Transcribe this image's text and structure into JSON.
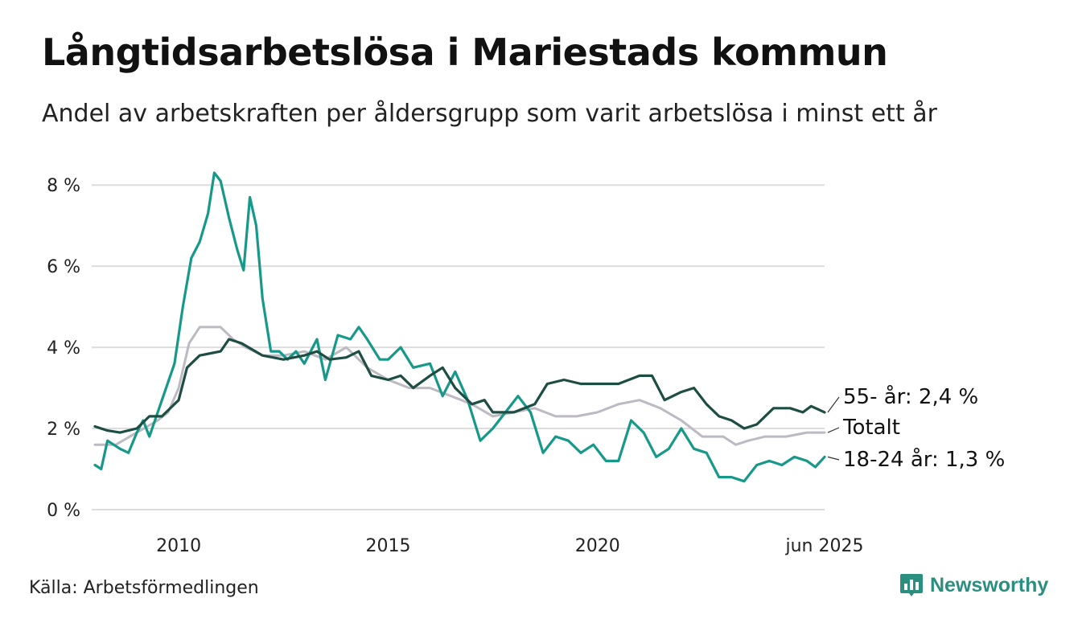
{
  "title": "Långtidsarbetslösa i Mariestads kommun",
  "subtitle": "Andel av arbetskraften per åldersgrupp som varit arbetslösa i minst ett år",
  "source": "Källa: Arbetsförmedlingen",
  "brand": "Newsworthy",
  "colors": {
    "s55": "#1e4d43",
    "total": "#bdbac4",
    "s1824": "#17998a",
    "grid": "#dddddd",
    "brand": "#2a8f7e"
  },
  "chart_data": {
    "type": "line",
    "xlim": [
      2008.0,
      2025.42
    ],
    "ylim": [
      0,
      8.4
    ],
    "y_ticks": [
      0,
      2,
      4,
      6,
      8
    ],
    "y_tick_labels": [
      "0 %",
      "2 %",
      "4 %",
      "6 %",
      "8 %"
    ],
    "x_ticks": [
      2010,
      2015,
      2020,
      2025.42
    ],
    "x_tick_labels": [
      "2010",
      "2015",
      "2020",
      "jun 2025"
    ],
    "series": [
      {
        "key": "total",
        "name": "Totalt",
        "end_label": "Totalt",
        "color": "#bdbac4",
        "points": [
          [
            2008.0,
            1.6
          ],
          [
            2008.5,
            1.6
          ],
          [
            2009.0,
            1.9
          ],
          [
            2009.5,
            2.2
          ],
          [
            2009.75,
            2.4
          ],
          [
            2010.0,
            3.0
          ],
          [
            2010.25,
            4.1
          ],
          [
            2010.5,
            4.5
          ],
          [
            2011.0,
            4.5
          ],
          [
            2011.3,
            4.2
          ],
          [
            2011.6,
            4.0
          ],
          [
            2012.0,
            3.8
          ],
          [
            2012.5,
            3.8
          ],
          [
            2013.0,
            3.9
          ],
          [
            2013.5,
            3.7
          ],
          [
            2014.0,
            4.0
          ],
          [
            2014.5,
            3.5
          ],
          [
            2015.0,
            3.2
          ],
          [
            2015.5,
            3.0
          ],
          [
            2016.0,
            3.0
          ],
          [
            2016.5,
            2.8
          ],
          [
            2017.0,
            2.6
          ],
          [
            2017.5,
            2.3
          ],
          [
            2018.0,
            2.4
          ],
          [
            2018.5,
            2.5
          ],
          [
            2019.0,
            2.3
          ],
          [
            2019.5,
            2.3
          ],
          [
            2020.0,
            2.4
          ],
          [
            2020.5,
            2.6
          ],
          [
            2021.0,
            2.7
          ],
          [
            2021.5,
            2.5
          ],
          [
            2022.0,
            2.2
          ],
          [
            2022.5,
            1.8
          ],
          [
            2023.0,
            1.8
          ],
          [
            2023.3,
            1.6
          ],
          [
            2023.6,
            1.7
          ],
          [
            2024.0,
            1.8
          ],
          [
            2024.5,
            1.8
          ],
          [
            2025.0,
            1.9
          ],
          [
            2025.42,
            1.9
          ]
        ]
      },
      {
        "key": "s55",
        "name": "55- år",
        "end_label": "55- år: 2,4 %",
        "color": "#1e4d43",
        "points": [
          [
            2008.0,
            2.05
          ],
          [
            2008.3,
            1.95
          ],
          [
            2008.6,
            1.9
          ],
          [
            2009.0,
            2.0
          ],
          [
            2009.3,
            2.3
          ],
          [
            2009.6,
            2.3
          ],
          [
            2010.0,
            2.7
          ],
          [
            2010.2,
            3.5
          ],
          [
            2010.5,
            3.8
          ],
          [
            2011.0,
            3.9
          ],
          [
            2011.2,
            4.2
          ],
          [
            2011.5,
            4.1
          ],
          [
            2012.0,
            3.8
          ],
          [
            2012.5,
            3.7
          ],
          [
            2013.0,
            3.8
          ],
          [
            2013.3,
            3.9
          ],
          [
            2013.6,
            3.7
          ],
          [
            2014.0,
            3.75
          ],
          [
            2014.3,
            3.9
          ],
          [
            2014.6,
            3.3
          ],
          [
            2015.0,
            3.2
          ],
          [
            2015.3,
            3.3
          ],
          [
            2015.6,
            3.0
          ],
          [
            2016.0,
            3.3
          ],
          [
            2016.3,
            3.5
          ],
          [
            2016.6,
            3.0
          ],
          [
            2017.0,
            2.6
          ],
          [
            2017.3,
            2.7
          ],
          [
            2017.5,
            2.4
          ],
          [
            2018.0,
            2.4
          ],
          [
            2018.5,
            2.6
          ],
          [
            2018.8,
            3.1
          ],
          [
            2019.2,
            3.2
          ],
          [
            2019.6,
            3.1
          ],
          [
            2020.0,
            3.1
          ],
          [
            2020.5,
            3.1
          ],
          [
            2021.0,
            3.3
          ],
          [
            2021.3,
            3.3
          ],
          [
            2021.6,
            2.7
          ],
          [
            2022.0,
            2.9
          ],
          [
            2022.3,
            3.0
          ],
          [
            2022.6,
            2.6
          ],
          [
            2022.9,
            2.3
          ],
          [
            2023.2,
            2.2
          ],
          [
            2023.5,
            2.0
          ],
          [
            2023.8,
            2.1
          ],
          [
            2024.2,
            2.5
          ],
          [
            2024.6,
            2.5
          ],
          [
            2024.9,
            2.4
          ],
          [
            2025.1,
            2.55
          ],
          [
            2025.42,
            2.4
          ]
        ]
      },
      {
        "key": "s1824",
        "name": "18-24 år",
        "end_label": "18-24 år: 1,3 %",
        "color": "#17998a",
        "points": [
          [
            2008.0,
            1.1
          ],
          [
            2008.15,
            1.0
          ],
          [
            2008.3,
            1.7
          ],
          [
            2008.6,
            1.5
          ],
          [
            2008.8,
            1.4
          ],
          [
            2009.0,
            1.9
          ],
          [
            2009.15,
            2.2
          ],
          [
            2009.3,
            1.8
          ],
          [
            2009.6,
            2.7
          ],
          [
            2009.9,
            3.6
          ],
          [
            2010.1,
            5.0
          ],
          [
            2010.3,
            6.2
          ],
          [
            2010.5,
            6.6
          ],
          [
            2010.7,
            7.3
          ],
          [
            2010.85,
            8.3
          ],
          [
            2011.0,
            8.1
          ],
          [
            2011.2,
            7.2
          ],
          [
            2011.4,
            6.4
          ],
          [
            2011.55,
            5.9
          ],
          [
            2011.7,
            7.7
          ],
          [
            2011.85,
            7.0
          ],
          [
            2012.0,
            5.2
          ],
          [
            2012.2,
            3.9
          ],
          [
            2012.4,
            3.9
          ],
          [
            2012.6,
            3.7
          ],
          [
            2012.8,
            3.9
          ],
          [
            2013.0,
            3.6
          ],
          [
            2013.3,
            4.2
          ],
          [
            2013.5,
            3.2
          ],
          [
            2013.8,
            4.3
          ],
          [
            2014.1,
            4.2
          ],
          [
            2014.3,
            4.5
          ],
          [
            2014.5,
            4.2
          ],
          [
            2014.8,
            3.7
          ],
          [
            2015.0,
            3.7
          ],
          [
            2015.3,
            4.0
          ],
          [
            2015.6,
            3.5
          ],
          [
            2016.0,
            3.6
          ],
          [
            2016.3,
            2.8
          ],
          [
            2016.6,
            3.4
          ],
          [
            2016.9,
            2.7
          ],
          [
            2017.2,
            1.7
          ],
          [
            2017.5,
            2.0
          ],
          [
            2017.8,
            2.4
          ],
          [
            2018.1,
            2.8
          ],
          [
            2018.4,
            2.4
          ],
          [
            2018.7,
            1.4
          ],
          [
            2019.0,
            1.8
          ],
          [
            2019.3,
            1.7
          ],
          [
            2019.6,
            1.4
          ],
          [
            2019.9,
            1.6
          ],
          [
            2020.2,
            1.2
          ],
          [
            2020.5,
            1.2
          ],
          [
            2020.8,
            2.2
          ],
          [
            2021.1,
            1.9
          ],
          [
            2021.4,
            1.3
          ],
          [
            2021.7,
            1.5
          ],
          [
            2022.0,
            2.0
          ],
          [
            2022.3,
            1.5
          ],
          [
            2022.6,
            1.4
          ],
          [
            2022.9,
            0.8
          ],
          [
            2023.2,
            0.8
          ],
          [
            2023.5,
            0.7
          ],
          [
            2023.8,
            1.1
          ],
          [
            2024.1,
            1.2
          ],
          [
            2024.4,
            1.1
          ],
          [
            2024.7,
            1.3
          ],
          [
            2025.0,
            1.2
          ],
          [
            2025.2,
            1.05
          ],
          [
            2025.42,
            1.3
          ]
        ]
      }
    ]
  }
}
